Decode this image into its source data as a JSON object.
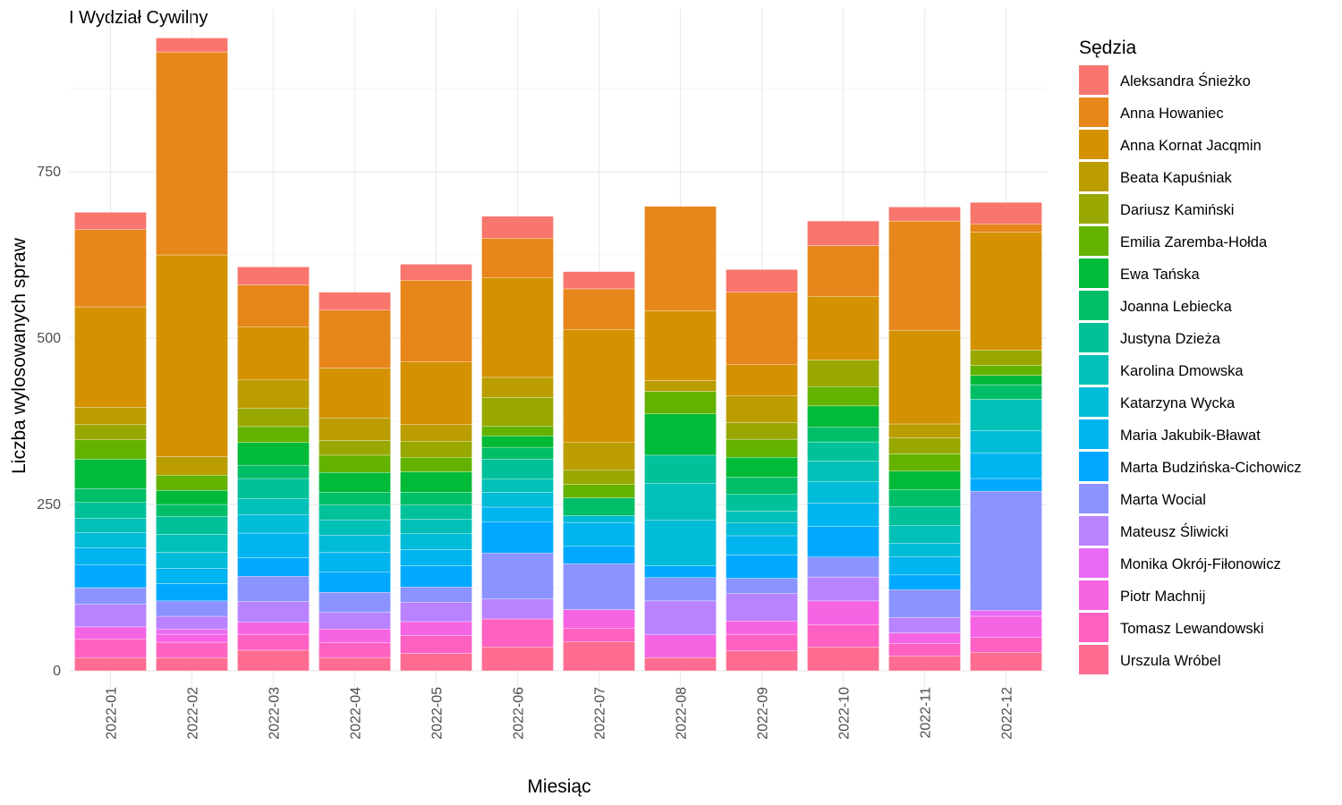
{
  "chart_data": {
    "type": "bar",
    "stacked": true,
    "title": "I Wydział Cywilny",
    "xlabel": "Miesiąc",
    "ylabel": "Liczba wylosowanych spraw",
    "ylim": [
      0,
      975
    ],
    "yticks": [
      0,
      250,
      500,
      750
    ],
    "grid": true,
    "legend_position": "right",
    "legend_title": "Sędzia",
    "categories": [
      "2022-01",
      "2022-02",
      "2022-03",
      "2022-04",
      "2022-05",
      "2022-06",
      "2022-07",
      "2022-08",
      "2022-09",
      "2022-10",
      "2022-11",
      "2022-12"
    ],
    "series": [
      {
        "name": "Urszula Wróbel",
        "color": "#FF6C91",
        "values": [
          20,
          20,
          31,
          20,
          26,
          36,
          44,
          20,
          30,
          36,
          22,
          28
        ]
      },
      {
        "name": "Tomasz Lewandowski",
        "color": "#FF61C3",
        "values": [
          28,
          23,
          24,
          22,
          27,
          42,
          20,
          0,
          25,
          33,
          19,
          22
        ]
      },
      {
        "name": "Piotr Machnij",
        "color": "#F564E3",
        "values": [
          18,
          12,
          18,
          21,
          21,
          0,
          28,
          34,
          20,
          36,
          16,
          32
        ]
      },
      {
        "name": "Monika Okrój-Fiłonowicz",
        "color": "#E76BF3",
        "values": [
          0,
          8,
          0,
          0,
          0,
          0,
          0,
          0,
          0,
          0,
          0,
          9
        ]
      },
      {
        "name": "Mateusz Śliwicki",
        "color": "#B983FF",
        "values": [
          34,
          19,
          31,
          25,
          29,
          30,
          0,
          51,
          41,
          36,
          23,
          0
        ]
      },
      {
        "name": "Marta Wocial",
        "color": "#8B93FF",
        "values": [
          25,
          23,
          38,
          30,
          23,
          69,
          69,
          35,
          23,
          30,
          42,
          179
        ]
      },
      {
        "name": "Marta Budzińska-Cichowicz",
        "color": "#00A9FF",
        "values": [
          34,
          26,
          28,
          31,
          32,
          47,
          26,
          18,
          35,
          46,
          22,
          19
        ]
      },
      {
        "name": "Maria Jakubik-Bławat",
        "color": "#00B4EF",
        "values": [
          26,
          23,
          37,
          29,
          24,
          22,
          36,
          0,
          29,
          35,
          27,
          38
        ]
      },
      {
        "name": "Katarzyna Wycka",
        "color": "#00BCD8",
        "values": [
          23,
          24,
          28,
          26,
          24,
          22,
          10,
          68,
          19,
          32,
          21,
          34
        ]
      },
      {
        "name": "Karolina Dmowska",
        "color": "#00C0B8",
        "values": [
          21,
          27,
          24,
          23,
          22,
          20,
          0,
          56,
          18,
          31,
          26,
          47
        ]
      },
      {
        "name": "Justyna Dzieża",
        "color": "#00C19A",
        "values": [
          24,
          27,
          30,
          22,
          21,
          30,
          0,
          42,
          25,
          29,
          29,
          0
        ]
      },
      {
        "name": "Joanna Lebiecka",
        "color": "#00BE67",
        "values": [
          21,
          18,
          20,
          19,
          19,
          17,
          27,
          0,
          26,
          22,
          25,
          22
        ]
      },
      {
        "name": "Ewa Tańska",
        "color": "#00BA38",
        "values": [
          44,
          21,
          34,
          30,
          31,
          18,
          0,
          62,
          30,
          32,
          28,
          14
        ]
      },
      {
        "name": "Emilia Zaremba-Hołda",
        "color": "#64B200",
        "values": [
          29,
          23,
          24,
          26,
          22,
          15,
          20,
          34,
          27,
          29,
          26,
          15
        ]
      },
      {
        "name": "Dariusz Kamiński",
        "color": "#99A800",
        "values": [
          23,
          0,
          28,
          22,
          24,
          43,
          22,
          0,
          25,
          40,
          24,
          23
        ]
      },
      {
        "name": "Beata Kapuśniak",
        "color": "#BB9D00",
        "values": [
          26,
          28,
          42,
          34,
          25,
          30,
          41,
          16,
          40,
          0,
          21,
          0
        ]
      },
      {
        "name": "Anna Kornat Jacqmin",
        "color": "#D49200",
        "values": [
          151,
          303,
          80,
          75,
          94,
          150,
          170,
          105,
          47,
          96,
          141,
          177
        ]
      },
      {
        "name": "Anna Howaniec",
        "color": "#E7861B",
        "values": [
          116,
          305,
          63,
          87,
          123,
          59,
          61,
          157,
          109,
          76,
          164,
          12
        ]
      },
      {
        "name": "Aleksandra Śnieżko",
        "color": "#F8766D",
        "values": [
          26,
          21,
          27,
          27,
          24,
          33,
          26,
          0,
          34,
          37,
          21,
          33
        ]
      }
    ]
  }
}
